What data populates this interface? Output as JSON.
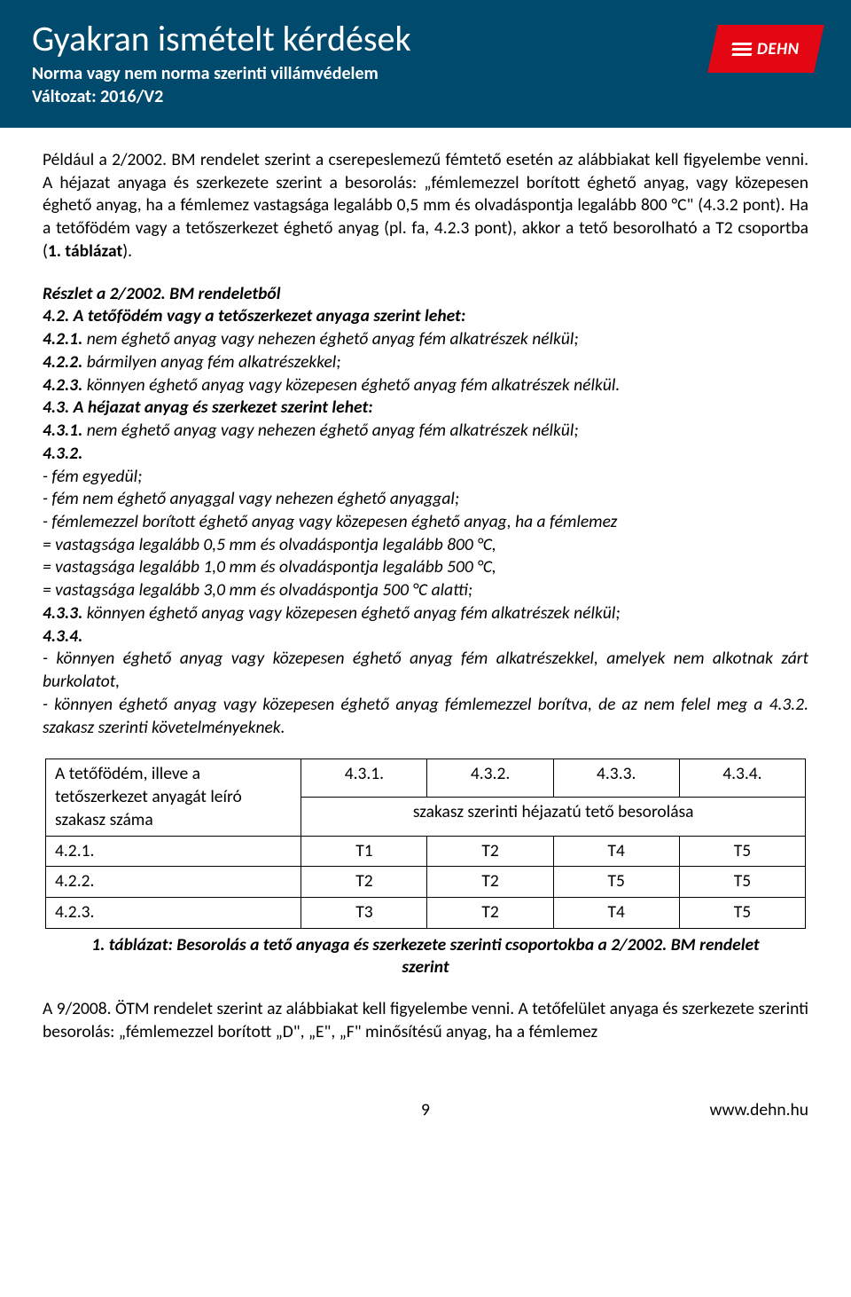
{
  "header": {
    "title": "Gyakran ismételt kérdések",
    "subtitle1": "Norma vagy nem norma szerinti villámvédelem",
    "subtitle2": "Változat: 2016/V2",
    "logo_text": "DEHN"
  },
  "para1_a": "Például a 2/2002. BM rendelet szerint a cserepeslemezű fémtető esetén az alábbiakat kell figyelembe venni. A héjazat anyaga és szerkezete szerint a besorolás: „fémlemezzel borított éghető anyag, vagy közepesen éghető anyag, ha a fémlemez vastagsága legalább 0,5 mm és olvadáspontja legalább 800 °C\" (4.3.2 pont). Ha a tetőfödém vagy a tetőszerkezet éghető anyag (pl. fa, 4.2.3 pont), akkor a tető besorolható a T2 csoportba (",
  "para1_b": "1. táblázat",
  "para1_c": ").",
  "s": {
    "l1a": "Részlet a 2/2002. BM rendeletből",
    "l2a": "4.2. A tetőfödém vagy a tetőszerkezet anyaga szerint lehet:",
    "l3a": "4.2.1.",
    "l3b": " nem éghető anyag vagy nehezen éghető anyag fém alkatrészek nélkül;",
    "l4a": "4.2.2.",
    "l4b": " bármilyen anyag fém alkatrészekkel;",
    "l5a": "4.2.3.",
    "l5b": " könnyen éghető anyag vagy közepesen éghető anyag fém alkatrészek nélkül.",
    "l6a": "4.3. A héjazat anyag és szerkezet szerint lehet:",
    "l7a": "4.3.1.",
    "l7b": " nem éghető anyag vagy nehezen éghető anyag fém alkatrészek nélkül;",
    "l8a": "4.3.2.",
    "l9": "- fém egyedül;",
    "l10": "- fém nem éghető anyaggal vagy nehezen éghető anyaggal;",
    "l11": "- fémlemezzel borított éghető anyag vagy közepesen éghető anyag, ha a fémlemez",
    "l12": "= vastagsága legalább 0,5 mm és olvadáspontja legalább 800 °C,",
    "l13": "= vastagsága legalább 1,0 mm és olvadáspontja legalább 500 °C,",
    "l14": "= vastagsága legalább 3,0 mm és olvadáspontja 500 °C alatti;",
    "l15a": "4.3.3.",
    "l15b": " könnyen éghető anyag vagy közepesen éghető anyag fém alkatrészek nélkül;",
    "l16a": "4.3.4.",
    "l17": "- könnyen éghető anyag vagy közepesen éghető anyag fém alkatrészekkel, amelyek nem alkotnak zárt burkolatot,",
    "l18": "- könnyen éghető anyag vagy közepesen éghető anyag fémlemezzel borítva, de az nem felel meg a 4.3.2. szakasz szerinti követelményeknek."
  },
  "table": {
    "h1": "A tetőfödém, illeve a tetőszerkezet anyagát leíró szakasz száma",
    "c1": "4.3.1.",
    "c2": "4.3.2.",
    "c3": "4.3.3.",
    "c4": "4.3.4.",
    "span": "szakasz szerinti héjazatú tető besorolása",
    "r1a": "4.2.1.",
    "r1b": "T1",
    "r1c": "T2",
    "r1d": "T4",
    "r1e": "T5",
    "r2a": "4.2.2.",
    "r2b": "T2",
    "r2c": "T2",
    "r2d": "T5",
    "r2e": "T5",
    "r3a": "4.2.3.",
    "r3b": "T3",
    "r3c": "T2",
    "r3d": "T4",
    "r3e": "T5"
  },
  "caption": "1. táblázat: Besorolás a tető anyaga és szerkezete szerinti csoportokba a 2/2002. BM rendelet szerint",
  "para2": "A 9/2008. ÖTM rendelet szerint az alábbiakat kell figyelembe venni. A tetőfelület anyaga és szerkezete szerinti besorolás: „fémlemezzel borított „D\", „E\", „F\" minősítésű anyag, ha a fémlemez",
  "footer": {
    "page": "9",
    "url": "www.dehn.hu"
  }
}
